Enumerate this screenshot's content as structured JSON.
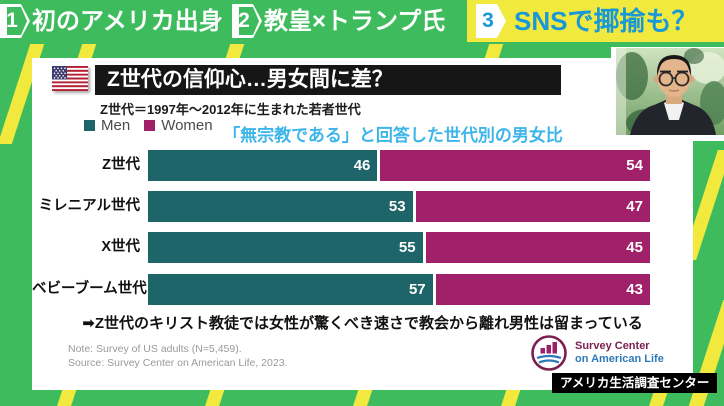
{
  "top_bar": {
    "items": [
      {
        "number": "1",
        "label": "初のアメリカ出身",
        "active": false
      },
      {
        "number": "2",
        "label": "教皇×トランプ氏",
        "active": false
      },
      {
        "number": "3",
        "label": "SNSで揶揄も？",
        "active": true
      }
    ]
  },
  "header": {
    "title": "Z世代の信仰心…男女間に差？",
    "subtitle": "Z世代＝1997年〜2012年に生まれた若者世代",
    "flag_icon": "us-flag"
  },
  "chart_data": {
    "type": "bar",
    "orientation": "horizontal-stacked",
    "title": "「無宗教である」と回答した世代別の男女比",
    "categories": [
      "Z世代",
      "ミレニアル世代",
      "X世代",
      "ベビーブーム世代"
    ],
    "series": [
      {
        "name": "Men",
        "color": "#1e6569",
        "values": [
          46,
          53,
          55,
          57
        ]
      },
      {
        "name": "Women",
        "color": "#a02069",
        "values": [
          54,
          47,
          45,
          43
        ]
      }
    ],
    "xlim": [
      0,
      100
    ],
    "value_labels": true,
    "legend_position": "top-left"
  },
  "takeaway": {
    "arrow_icon": "➡",
    "text": "Z世代のキリスト教徒では女性が驚くべき速さで教会から離れ男性は留まっている"
  },
  "footnotes": {
    "note": "Note: Survey of US adults (N=5,459).",
    "source": "Source: Survey Center on American Life, 2023."
  },
  "logo": {
    "line1": "Survey Center",
    "line2": "on American Life"
  },
  "badge": {
    "text": "アメリカ生活調査センター"
  },
  "colors": {
    "background_green": "#3ebc5d",
    "stripe_yellow": "#f2e93e",
    "men_teal": "#1e6569",
    "women_magenta": "#a02069",
    "chart_title_blue": "#3eb5e8",
    "active_tab_blue": "#1898d6"
  }
}
